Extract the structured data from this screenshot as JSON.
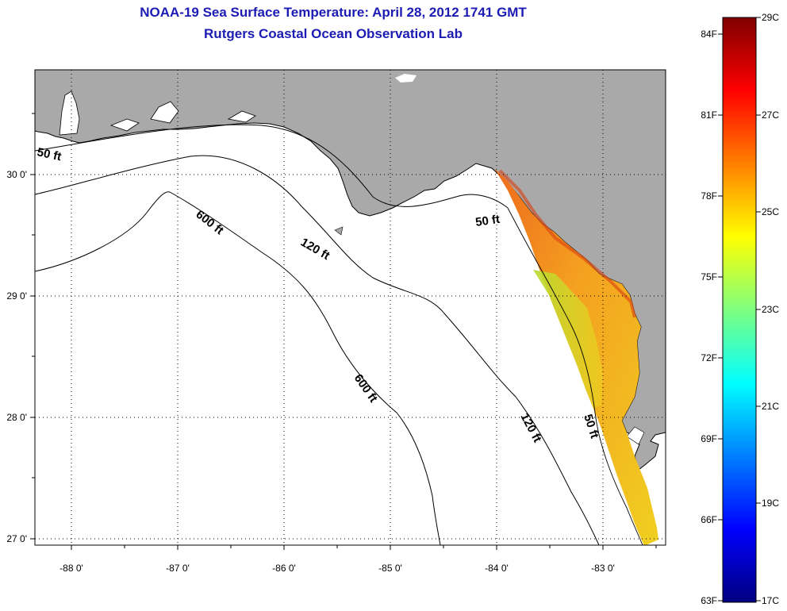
{
  "title": {
    "line1": "NOAA-19 Sea Surface Temperature:  April 28, 2012 1741 GMT",
    "line2": "Rutgers Coastal Ocean Observation Lab"
  },
  "map": {
    "lon_labels": [
      "-88 0'",
      "-87 0'",
      "-86 0'",
      "-85 0'",
      "-84 0'",
      "-83 0'"
    ],
    "lat_labels": [
      "30 0'",
      "29 0'",
      "28 0'",
      "27 0'"
    ],
    "contour_labels": [
      "50 ft",
      "600 ft",
      "120 ft",
      "50 ft",
      "600 ft",
      "120 ft",
      "50 ft"
    ]
  },
  "colorbar": {
    "f_labels": [
      "84F",
      "81F",
      "78F",
      "75F",
      "72F",
      "69F",
      "66F",
      "63F"
    ],
    "c_labels": [
      "29C",
      "27C",
      "25C",
      "23C",
      "21C",
      "19C",
      "17C"
    ]
  },
  "colors": {
    "land": "#a9a9a9",
    "title": "#1c1cb4",
    "sst_warm": "#f07820",
    "sst_cool": "#b8e030"
  }
}
